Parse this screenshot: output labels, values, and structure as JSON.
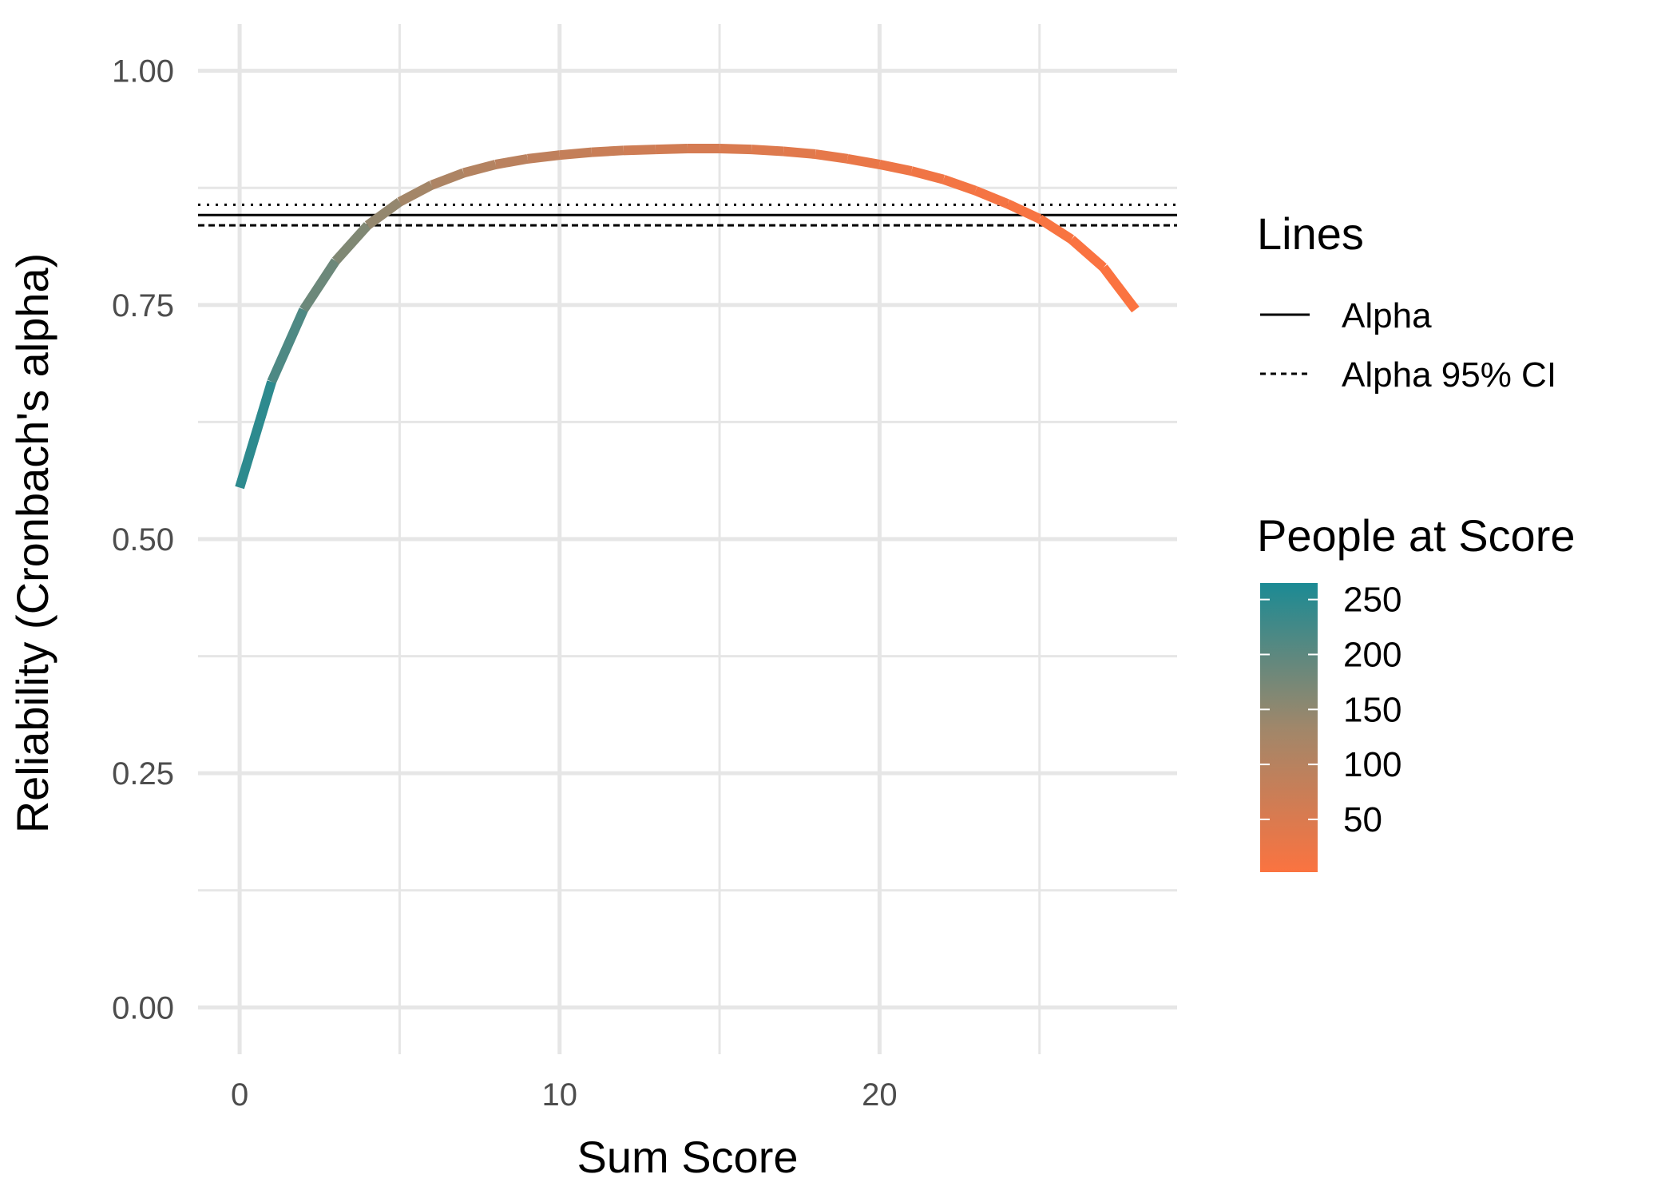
{
  "chart_data": {
    "type": "line",
    "title": "",
    "xlabel": "Sum Score",
    "ylabel": "Reliability (Cronbach's alpha)",
    "xlim": [
      -1.3,
      29.3
    ],
    "ylim": [
      -0.05,
      1.05
    ],
    "x_ticks": [
      0,
      10,
      20
    ],
    "x_tick_labels": [
      "0",
      "10",
      "20"
    ],
    "x_minor_ticks": [
      5,
      15,
      25
    ],
    "y_ticks": [
      0.0,
      0.25,
      0.5,
      0.75,
      1.0
    ],
    "y_tick_labels": [
      "0.00",
      "0.25",
      "0.50",
      "0.75",
      "1.00"
    ],
    "y_minor_ticks": [
      0.125,
      0.375,
      0.625,
      0.875
    ],
    "grid": true,
    "series": [
      {
        "x": [
          0,
          1,
          2,
          3,
          4,
          5,
          6,
          7,
          8,
          9,
          10,
          11,
          12,
          13,
          14,
          15,
          16,
          17,
          18,
          19,
          20,
          21,
          22,
          23,
          24,
          25,
          26,
          27,
          28
        ],
        "y": [
          0.555,
          0.668,
          0.745,
          0.797,
          0.835,
          0.86,
          0.878,
          0.891,
          0.9,
          0.906,
          0.91,
          0.913,
          0.915,
          0.916,
          0.917,
          0.917,
          0.916,
          0.914,
          0.911,
          0.906,
          0.9,
          0.893,
          0.884,
          0.872,
          0.858,
          0.842,
          0.82,
          0.79,
          0.745
        ],
        "people": [
          260,
          235,
          195,
          175,
          155,
          135,
          120,
          110,
          100,
          92,
          85,
          78,
          70,
          65,
          60,
          55,
          48,
          42,
          36,
          30,
          25,
          20,
          15,
          12,
          9,
          7,
          5,
          3,
          2
        ]
      }
    ],
    "reference_lines": [
      {
        "name": "Alpha",
        "y": 0.846,
        "style": "solid"
      },
      {
        "name": "Alpha 95% CI",
        "y": 0.857,
        "style": "dotted"
      },
      {
        "name": "Alpha 95% CI",
        "y": 0.835,
        "style": "dashed"
      }
    ],
    "legend": {
      "lines_title": "Lines",
      "lines_entries": [
        "Alpha",
        "Alpha 95% CI"
      ],
      "color_title": "People at Score",
      "color_range": [
        2,
        265
      ],
      "color_breaks": [
        250,
        200,
        150,
        100,
        50
      ],
      "color_break_labels": [
        "250",
        "200",
        "150",
        "100",
        "50"
      ],
      "color_high": "#1b8a94",
      "color_mid": "#a0876a",
      "color_low": "#fb7340",
      "placement": "right"
    },
    "colors": {
      "grid": "#e6e6e6",
      "reference": "#000000"
    }
  }
}
